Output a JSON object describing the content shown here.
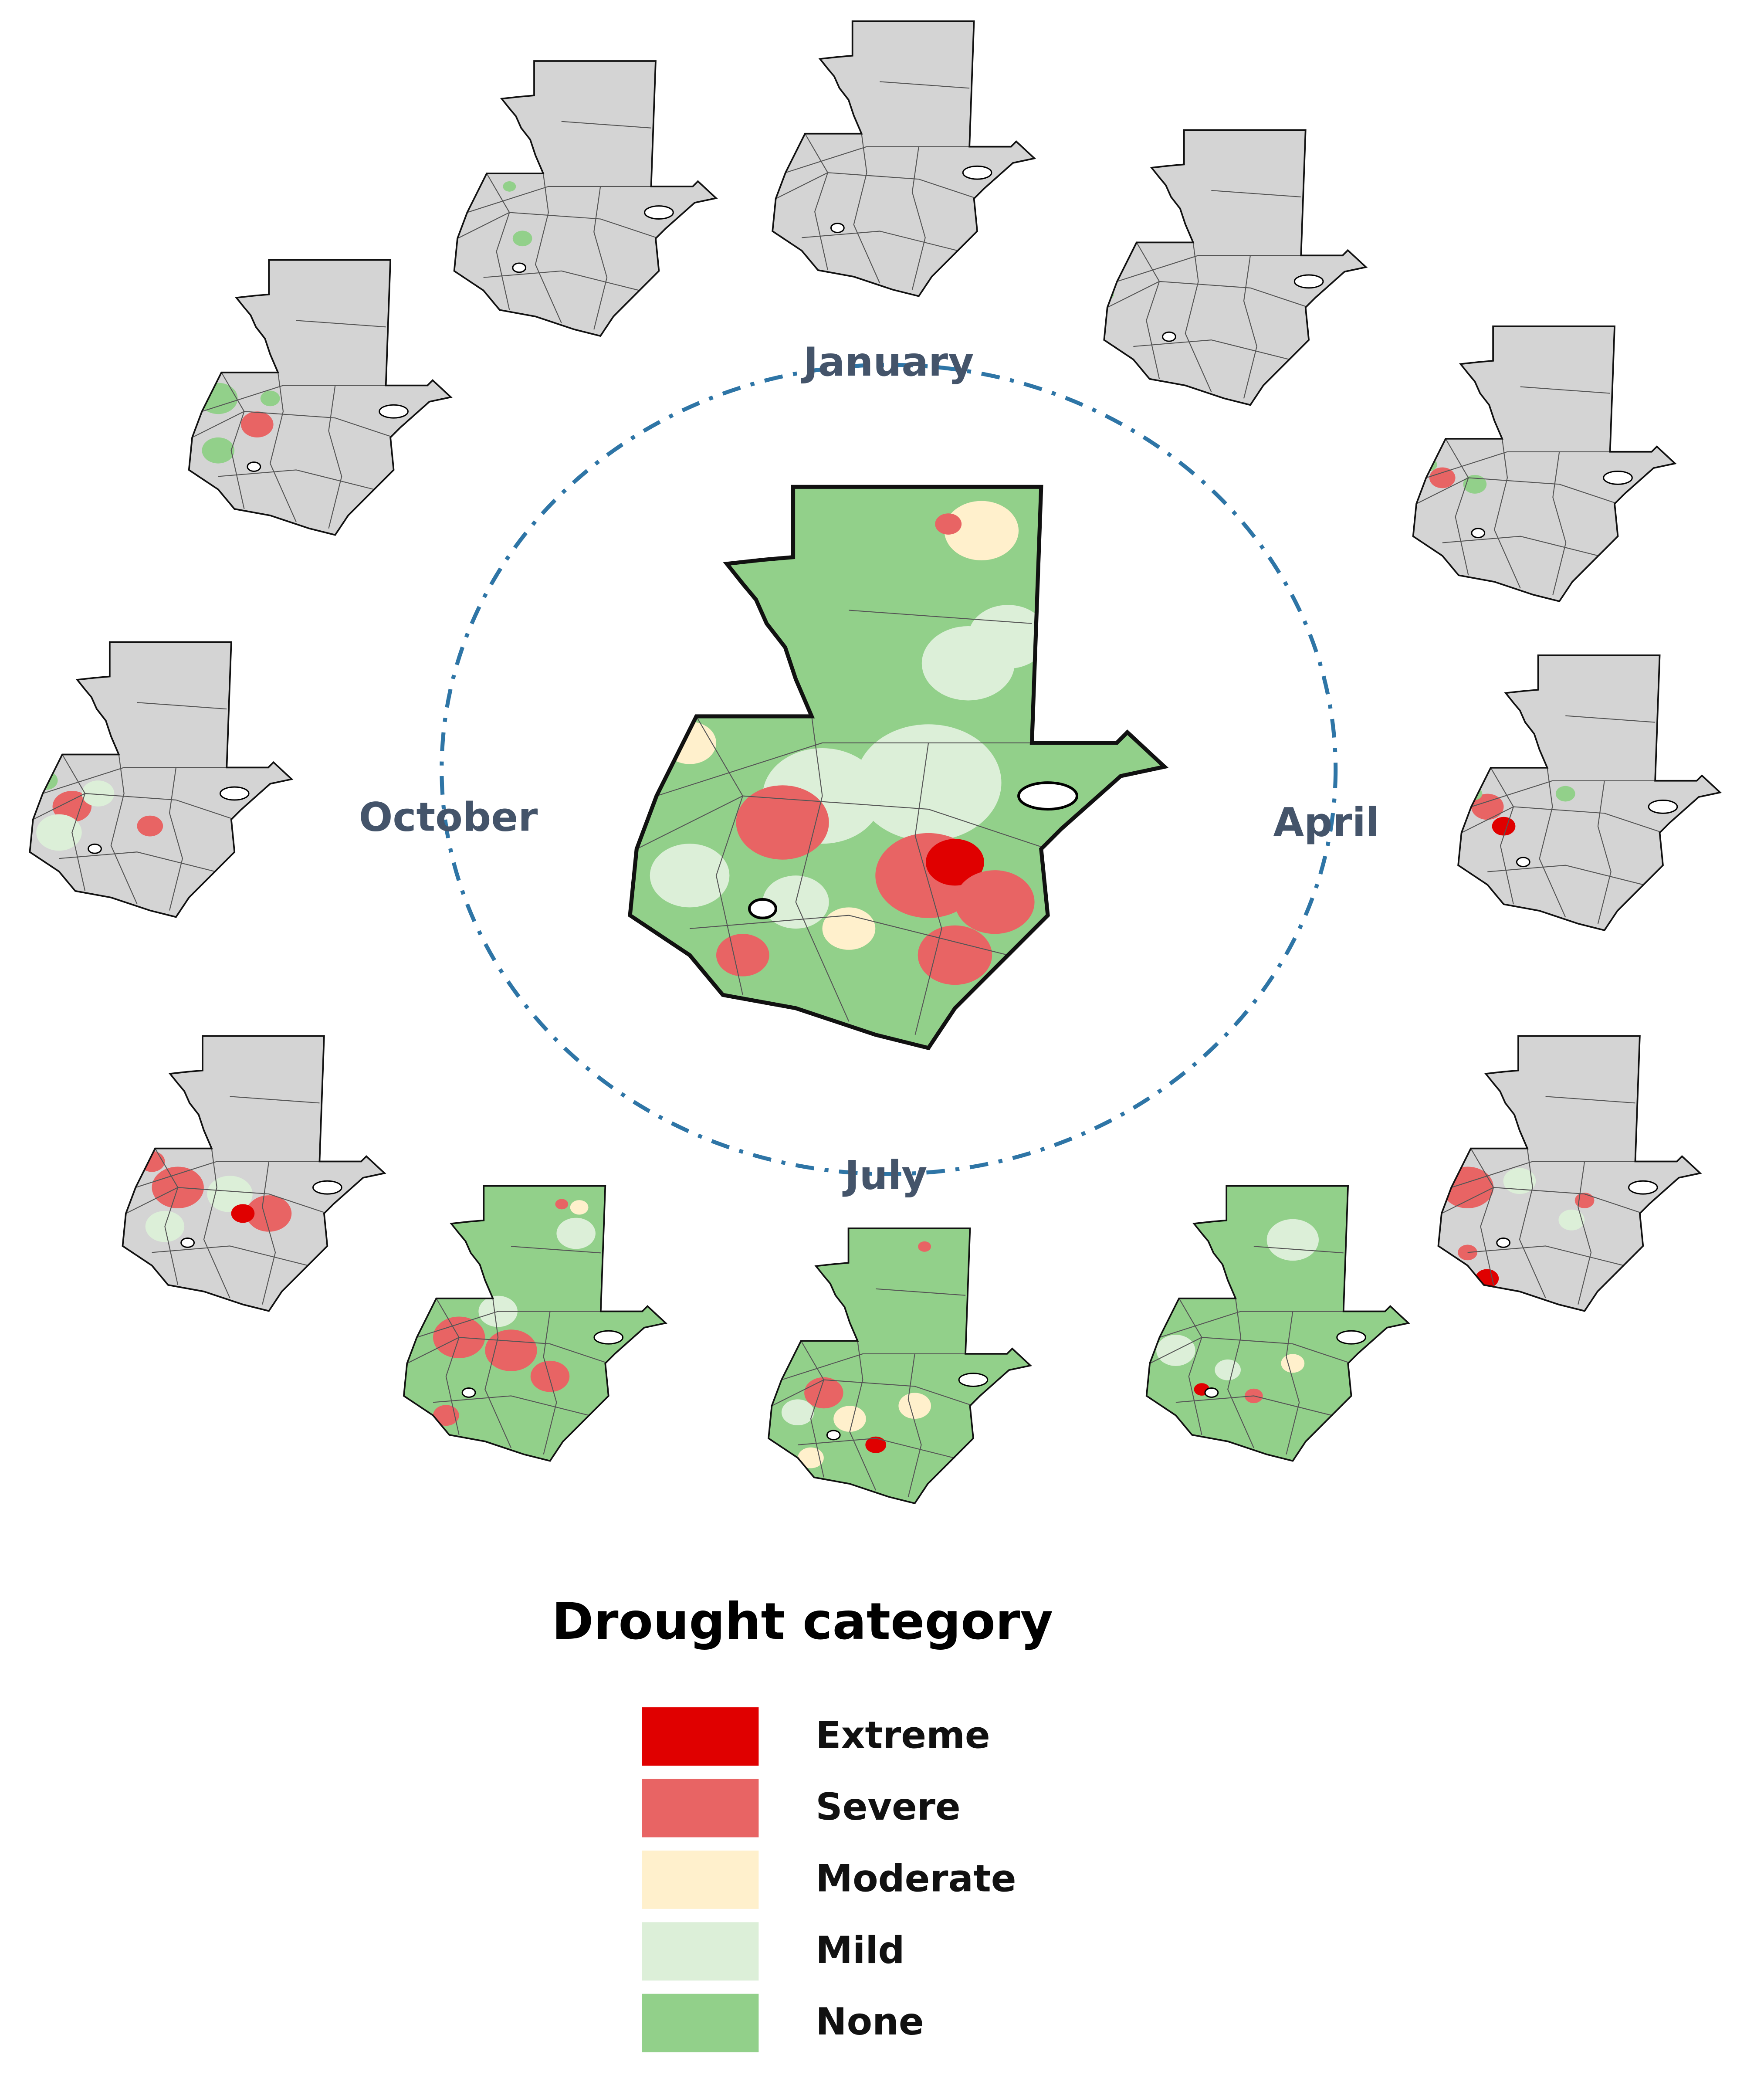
{
  "labels": [
    "January",
    "April",
    "July",
    "October"
  ],
  "legend": {
    "title": "Drought category",
    "items": [
      {
        "label": "Extreme",
        "color": "#e00000"
      },
      {
        "label": "Severe",
        "color": "#e86464"
      },
      {
        "label": "Moderate",
        "color": "#fff0cc"
      },
      {
        "label": "Mild",
        "color": "#dcefd8"
      },
      {
        "label": "None",
        "color": "#92d08a"
      }
    ]
  }
}
